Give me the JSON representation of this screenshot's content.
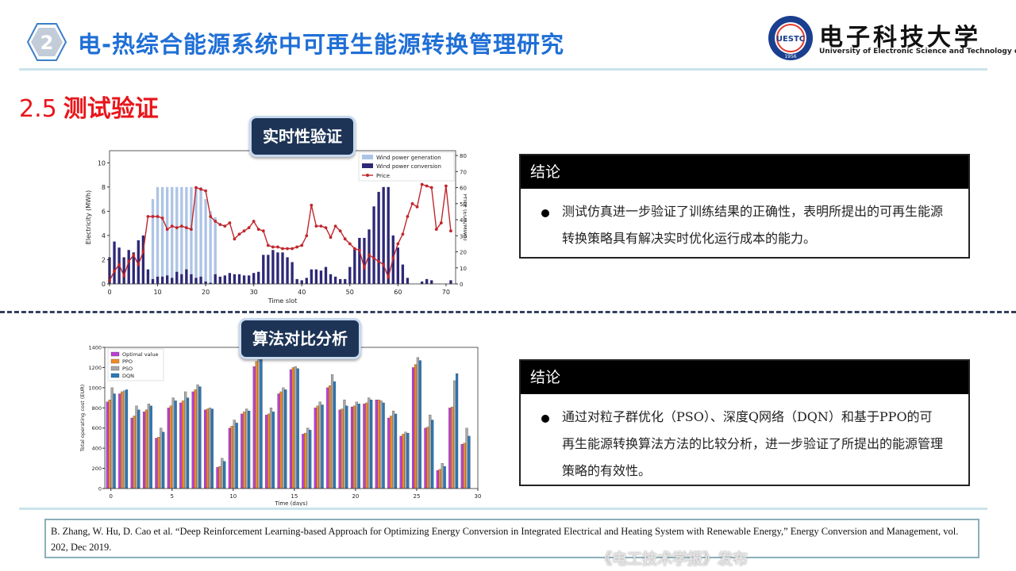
{
  "header": {
    "section_number": "2",
    "title": "电-热综合能源系统中可再生能源转换管理研究",
    "logo_name": "电子科技大学",
    "logo_en": "University of Electronic Science and Technology of China",
    "seal_text": "UESTC",
    "seal_year": "1956"
  },
  "section": {
    "number": "2.5",
    "title": "测试验证"
  },
  "tags": {
    "realtime": "实时性验证",
    "compare": "算法对比分析"
  },
  "conclusion1": {
    "head": "结论",
    "text": "测试仿真进一步验证了训练结果的正确性，表明所提出的可再生能源转换策略具有解决实时优化运行成本的能力。"
  },
  "conclusion2": {
    "head": "结论",
    "text": "通过对粒子群优化（PSO）、深度Q网络（DQN）和基于PPO的可再生能源转换算法方法的比较分析，进一步验证了所提出的能源管理策略的有效性。"
  },
  "reference": "B. Zhang, W. Hu, D. Cao et al. “Deep Reinforcement Learning-based Approach for Optimizing Energy Conversion in Integrated Electrical and Heating System with Renewable Energy,” Energy Conversion and Management, vol. 202, Dec 2019.",
  "watermark": "《电工技术学报》发布",
  "colors": {
    "accent_blue": "#1f6fd6",
    "section_red": "#e8161b",
    "tag_bg": "#1d3456"
  },
  "chart_data": [
    {
      "type": "bar",
      "xlabel": "Time slot",
      "ylabel": "Electricity (MWh)",
      "y2label": "Price (EUR/MWh)",
      "xlim": [
        0,
        72
      ],
      "ylim": [
        0,
        11
      ],
      "y2lim": [
        0,
        83
      ],
      "xticks": [
        0,
        10,
        20,
        30,
        40,
        50,
        60,
        70
      ],
      "yticks": [
        0,
        2,
        4,
        6,
        8,
        10
      ],
      "y2ticks": [
        0,
        10,
        20,
        30,
        40,
        50,
        60,
        70,
        80
      ],
      "legend": "top-right",
      "series": [
        {
          "name": "Wind power generation",
          "kind": "bar",
          "color": "#aec4e6",
          "values": [
            0,
            0,
            0,
            0,
            0,
            0,
            0,
            0,
            0,
            7,
            8,
            8,
            8,
            8,
            8,
            8,
            8,
            8,
            8,
            8,
            7,
            6,
            5.5,
            0,
            0,
            0,
            0,
            0,
            0,
            0,
            0,
            0,
            0,
            0,
            0,
            0,
            0,
            0,
            0,
            0,
            0,
            0,
            0,
            0,
            0,
            0,
            0,
            0,
            0,
            0,
            0,
            0,
            0,
            0,
            0,
            0,
            0,
            0,
            0,
            0,
            0,
            0,
            0,
            0,
            0,
            0,
            0,
            0,
            0,
            0,
            0,
            0
          ]
        },
        {
          "name": "Wind power conversion",
          "kind": "bar",
          "color": "#2e2876",
          "values": [
            2.2,
            3.5,
            3.0,
            2.2,
            2.8,
            2.6,
            3.6,
            4.0,
            1.2,
            0.4,
            0.6,
            0.6,
            0.7,
            0.5,
            1.0,
            0.8,
            1.2,
            0.8,
            0.5,
            0.6,
            0.2,
            0.1,
            0.8,
            0.6,
            0.7,
            0.9,
            0.8,
            0.8,
            0.7,
            0.7,
            0.9,
            1.0,
            2.4,
            2.4,
            2.8,
            2.6,
            2.6,
            2.2,
            1.8,
            0.4,
            0.3,
            0.5,
            1.2,
            1.2,
            1.1,
            1.4,
            0.8,
            0.6,
            0.4,
            0.4,
            1.4,
            2.9,
            3.8,
            3.8,
            4.5,
            6.4,
            7.6,
            8.0,
            8.0,
            4.0,
            3.0,
            1.6,
            0.5,
            0,
            0,
            0.2,
            0.4,
            0.3,
            0,
            0,
            0,
            0.3
          ]
        },
        {
          "name": "Price",
          "kind": "line",
          "color": "#c0272d",
          "values": [
            2,
            8,
            12,
            5,
            14,
            18,
            12,
            20,
            42,
            42,
            42,
            41,
            34,
            36,
            35,
            36,
            35,
            34,
            60,
            59,
            58,
            42,
            39,
            37,
            36,
            38,
            28,
            31,
            33,
            35,
            39,
            34,
            33,
            24,
            23,
            23,
            22,
            22,
            22,
            23,
            24,
            30,
            49,
            36,
            36,
            35,
            29,
            36,
            33,
            28,
            25,
            22,
            21,
            10,
            18,
            16,
            14,
            12,
            4,
            16,
            25,
            31,
            42,
            50,
            48,
            62,
            61,
            60,
            34,
            38,
            61,
            33
          ]
        }
      ]
    },
    {
      "type": "bar",
      "xlabel": "Time (days)",
      "ylabel": "Total operating cost (EUR)",
      "xlim": [
        -0.5,
        30
      ],
      "ylim": [
        0,
        1400
      ],
      "xticks": [
        0,
        5,
        10,
        15,
        20,
        25,
        30
      ],
      "yticks": [
        0,
        200,
        400,
        600,
        800,
        1000,
        1200,
        1400
      ],
      "legend": "top-left",
      "series": [
        {
          "name": "Optimal value",
          "color": "#bc3fd8",
          "values": [
            860,
            940,
            700,
            760,
            500,
            800,
            850,
            960,
            780,
            210,
            600,
            740,
            1210,
            730,
            940,
            1180,
            540,
            800,
            1000,
            780,
            810,
            840,
            880,
            700,
            520,
            1200,
            600,
            180,
            800,
            440
          ]
        },
        {
          "name": "PPO",
          "color": "#f08a24",
          "values": [
            880,
            960,
            720,
            780,
            510,
            820,
            870,
            980,
            790,
            220,
            620,
            760,
            1260,
            740,
            960,
            1200,
            550,
            820,
            1020,
            790,
            820,
            850,
            880,
            720,
            540,
            1230,
            610,
            190,
            810,
            450
          ]
        },
        {
          "name": "PSO",
          "color": "#a8a8a8",
          "values": [
            1000,
            970,
            820,
            840,
            600,
            900,
            960,
            1030,
            800,
            300,
            680,
            790,
            1380,
            800,
            1000,
            1210,
            600,
            860,
            1130,
            880,
            860,
            900,
            870,
            770,
            560,
            1300,
            730,
            250,
            1070,
            600
          ]
        },
        {
          "name": "DQN",
          "color": "#2a78b8",
          "values": [
            940,
            980,
            780,
            820,
            560,
            870,
            900,
            1010,
            790,
            270,
            650,
            770,
            1310,
            760,
            980,
            1190,
            580,
            830,
            1060,
            820,
            840,
            880,
            850,
            740,
            550,
            1270,
            680,
            220,
            1140,
            520
          ]
        }
      ]
    }
  ]
}
